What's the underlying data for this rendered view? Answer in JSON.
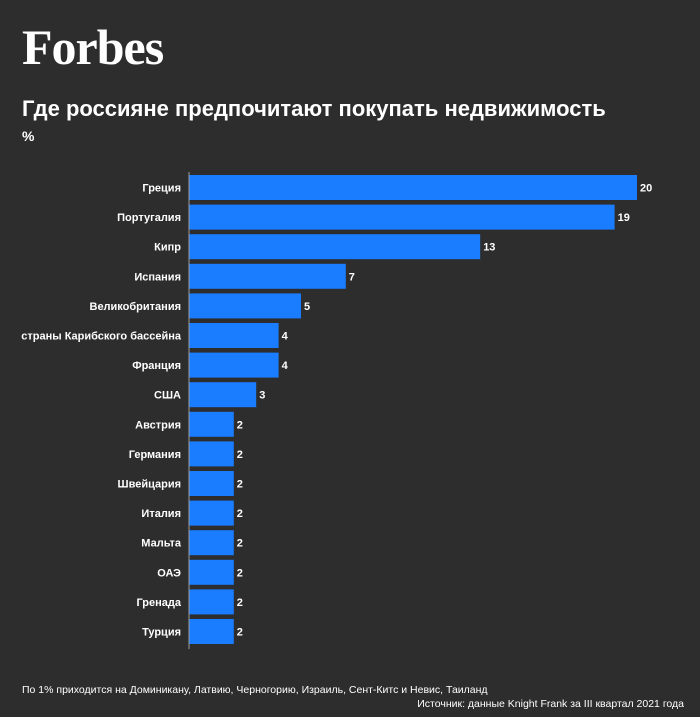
{
  "header": {
    "logo": "Forbes",
    "title": "Где россияне предпочитают покупать недвижимость",
    "unit": "%"
  },
  "chart_data": {
    "type": "bar",
    "orientation": "horizontal",
    "categories": [
      "Греция",
      "Португалия",
      "Кипр",
      "Испания",
      "Великобритания",
      "страны Карибского бассейна",
      "Франция",
      "США",
      "Австрия",
      "Германия",
      "Швейцария",
      "Италия",
      "Мальта",
      "ОАЭ",
      "Гренада",
      "Турция"
    ],
    "values": [
      20,
      19,
      13,
      7,
      5,
      4,
      4,
      3,
      2,
      2,
      2,
      2,
      2,
      2,
      2,
      2
    ],
    "bar_color": "#1a7cff",
    "axis_color": "#9a9a9a",
    "xlim": [
      0,
      20
    ],
    "grid": false,
    "data_labels": true
  },
  "footer": {
    "footnote": "По 1% приходится на Доминикану, Латвию, Черногорию, Израиль, Сент-Китс и Невис, Таиланд",
    "source": "Источник: данные Knight Frank за III квартал 2021 года"
  }
}
